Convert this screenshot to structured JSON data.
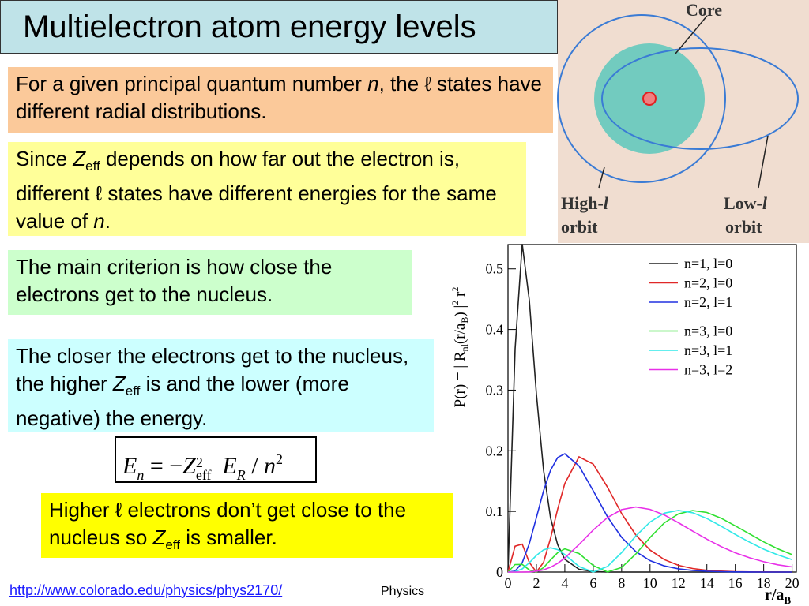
{
  "title": "Multielectron atom energy levels",
  "diagram": {
    "core": "Core",
    "high": [
      "High-",
      "l",
      "orbit"
    ],
    "low": [
      "Low-",
      "l",
      "orbit"
    ]
  },
  "boxes": [
    {
      "runs": [
        "For a given principal quantum number ",
        "n",
        ", the ℓ states have different radial distributions."
      ]
    },
    {
      "runs": [
        "Since ",
        "Z",
        "eff",
        " depends on how far out the electron is, different ℓ states have different energies for the same value of ",
        "n",
        "."
      ]
    },
    {
      "runs": [
        "The main criterion is how close the electrons get to the nucleus."
      ]
    },
    {
      "runs": [
        "The closer the electrons get to the nucleus, the higher ",
        "Z",
        "eff",
        " is and the lower (more negative) the energy."
      ]
    },
    {
      "runs": [
        "Higher ℓ electrons don’t get close to the nucleus so ",
        "Z",
        "eff",
        " is smaller."
      ]
    }
  ],
  "equation": [
    "E",
    "n",
    " = −",
    "Z",
    "2",
    "eff",
    " E",
    "R",
    " / ",
    "n",
    "2"
  ],
  "footer": {
    "link": "http://www.colorado.edu/physics/phys2170/",
    "course": "Physics"
  },
  "chart_data": {
    "type": "line",
    "ylabel": [
      "P(r)  =  | R",
      "nl",
      "(r/a",
      "B",
      ") |",
      "2",
      " r",
      "2"
    ],
    "xlabel": [
      "r/a",
      "B"
    ],
    "x": [
      0,
      0.5,
      1,
      1.5,
      2,
      2.5,
      3,
      3.5,
      4,
      5,
      6,
      7,
      8,
      9,
      10,
      11,
      12,
      13,
      14,
      15,
      16,
      17,
      18,
      19,
      20
    ],
    "series": [
      {
        "name": "n=1, l=0",
        "color": "#222222",
        "values": [
          0,
          0.368,
          0.541,
          0.448,
          0.293,
          0.168,
          0.089,
          0.045,
          0.021,
          0.0045,
          0.0009,
          0,
          0,
          0,
          0,
          0,
          0,
          0,
          0,
          0,
          0,
          0,
          0,
          0,
          0
        ]
      },
      {
        "name": "n=2, l=0",
        "color": "#e02828",
        "values": [
          0,
          0.0427,
          0.046,
          0.0157,
          0,
          0.016,
          0.056,
          0.104,
          0.146,
          0.19,
          0.178,
          0.14,
          0.0965,
          0.0612,
          0.0363,
          0.0205,
          0.011,
          0.0058,
          0.0029,
          0.0015,
          0.0007,
          0.0003,
          0.0002,
          0.0001,
          0
        ]
      },
      {
        "name": "n=2, l=1",
        "color": "#2030e0",
        "values": [
          0,
          0.0016,
          0.0153,
          0.047,
          0.09,
          0.134,
          0.168,
          0.189,
          0.195,
          0.175,
          0.134,
          0.0912,
          0.0572,
          0.0337,
          0.0189,
          0.0102,
          0.0053,
          0.0027,
          0.0013,
          0.0006,
          0.0003,
          0.0001,
          0,
          0,
          0
        ]
      },
      {
        "name": "n=3, l=0",
        "color": "#30e030",
        "values": [
          0,
          0.0124,
          0.0126,
          0.0034,
          0.0001,
          0.0073,
          0.02,
          0.032,
          0.0382,
          0.0306,
          0.0108,
          0.0001,
          0.0076,
          0.0298,
          0.057,
          0.0811,
          0.096,
          0.1013,
          0.0983,
          0.0889,
          0.0763,
          0.063,
          0.0498,
          0.0383,
          0.0287
        ]
      },
      {
        "name": "n=3, l=1",
        "color": "#30e8e8",
        "values": [
          0,
          0.0006,
          0.0052,
          0.0153,
          0.0274,
          0.0367,
          0.0401,
          0.037,
          0.0289,
          0.0091,
          0,
          0.0092,
          0.0321,
          0.0595,
          0.0825,
          0.0972,
          0.1016,
          0.0978,
          0.0884,
          0.0757,
          0.0621,
          0.0493,
          0.0377,
          0.0282,
          0.0206
        ]
      },
      {
        "name": "n=3, l=2",
        "color": "#e830e8",
        "values": [
          0,
          0,
          0,
          0.0003,
          0.0014,
          0.0037,
          0.008,
          0.0145,
          0.0231,
          0.0454,
          0.0694,
          0.0899,
          0.1029,
          0.1072,
          0.1033,
          0.0942,
          0.0813,
          0.0675,
          0.0542,
          0.042,
          0.0318,
          0.0235,
          0.017,
          0.012,
          0.0084
        ]
      }
    ],
    "xlim": [
      0,
      20.3
    ],
    "ylim": [
      0,
      0.54
    ],
    "xticks": [
      0,
      2,
      4,
      6,
      8,
      10,
      12,
      14,
      16,
      18,
      20
    ],
    "yticks": [
      0,
      0.1,
      0.2,
      0.3,
      0.4,
      0.5
    ],
    "legend": "upper right"
  }
}
